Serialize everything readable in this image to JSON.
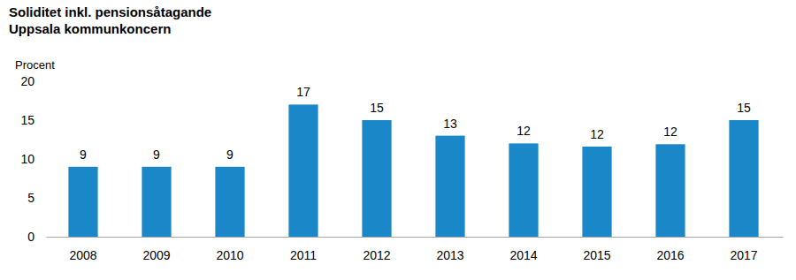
{
  "chart_data": {
    "type": "bar",
    "title": "Soliditet inkl. pensionsåtagande",
    "subtitle": "Uppsala kommunkoncern",
    "y_label": "Procent",
    "categories": [
      "2008",
      "2009",
      "2010",
      "2011",
      "2012",
      "2013",
      "2014",
      "2015",
      "2016",
      "2017"
    ],
    "values": [
      9,
      9,
      9,
      17,
      15,
      13,
      12,
      11.6,
      11.9,
      15
    ],
    "value_labels": [
      "9",
      "9",
      "9",
      "17",
      "15",
      "13",
      "12",
      "12",
      "12",
      "15"
    ],
    "data_labels": true,
    "color": "#1a87c9",
    "ylim": [
      0,
      20
    ],
    "yticks": [
      0,
      5,
      10,
      15,
      20
    ],
    "grid": false
  }
}
